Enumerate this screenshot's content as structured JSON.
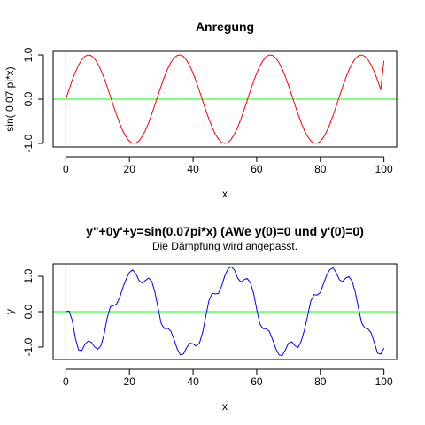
{
  "chart_data": [
    {
      "type": "line",
      "title": "Anregung",
      "subtitle": "",
      "xlabel": "x",
      "ylabel": "sin( 0.07 pi*x)",
      "xlim": [
        0,
        100
      ],
      "ylim": [
        -1,
        1
      ],
      "xticks": [
        0,
        20,
        40,
        60,
        80,
        100
      ],
      "xtick_labels": [
        "0",
        "20",
        "40",
        "60",
        "80",
        "100"
      ],
      "yticks": [
        -1,
        0,
        1
      ],
      "ytick_labels": [
        "-1.0",
        "0.0",
        "1.0"
      ],
      "grid": false,
      "reference_lines": {
        "h": 0,
        "v": 0,
        "color": "#00ff00"
      },
      "series": [
        {
          "color": "#ff0000",
          "x": [
            0,
            1,
            2,
            3,
            4,
            5,
            6,
            7,
            8,
            9,
            10,
            11,
            12,
            13,
            14,
            15,
            16,
            17,
            18,
            19,
            20,
            21,
            22,
            23,
            24,
            25,
            26,
            27,
            28,
            29,
            30,
            31,
            32,
            33,
            34,
            35,
            36,
            37,
            38,
            39,
            40,
            41,
            42,
            43,
            44,
            45,
            46,
            47,
            48,
            49,
            50,
            51,
            52,
            53,
            54,
            55,
            56,
            57,
            58,
            59,
            60,
            61,
            62,
            63,
            64,
            65,
            66,
            67,
            68,
            69,
            70,
            71,
            72,
            73,
            74,
            75,
            76,
            77,
            78,
            79,
            80,
            81,
            82,
            83,
            84,
            85,
            86,
            87,
            88,
            89,
            90,
            91,
            92,
            93,
            94,
            95,
            96,
            97,
            98,
            99,
            100
          ],
          "y": [
            0.0,
            0.218,
            0.426,
            0.613,
            0.771,
            0.891,
            0.969,
            0.999,
            0.982,
            0.918,
            0.809,
            0.661,
            0.482,
            0.279,
            0.063,
            -0.156,
            -0.368,
            -0.562,
            -0.729,
            -0.861,
            -0.951,
            -0.996,
            -0.993,
            -0.941,
            -0.844,
            -0.707,
            -0.536,
            -0.339,
            -0.125,
            0.094,
            0.309,
            0.509,
            0.685,
            0.827,
            0.93,
            0.988,
            0.999,
            0.963,
            0.876,
            0.75,
            0.588,
            0.397,
            0.187,
            -0.031,
            -0.249,
            -0.454,
            -0.637,
            -0.79,
            -0.904,
            -0.976,
            -1.0,
            -0.976,
            -0.904,
            -0.79,
            -0.637,
            -0.454,
            -0.249,
            -0.031,
            0.187,
            0.397,
            0.588,
            0.75,
            0.876,
            0.963,
            0.999,
            0.988,
            0.93,
            0.827,
            0.685,
            0.509,
            0.309,
            0.094,
            -0.125,
            -0.339,
            -0.536,
            -0.707,
            -0.844,
            -0.941,
            -0.993,
            -0.996,
            -0.951,
            -0.861,
            -0.729,
            -0.562,
            -0.368,
            -0.156,
            0.063,
            0.279,
            0.482,
            0.661,
            0.809,
            0.918,
            0.982,
            0.999,
            0.969,
            0.891,
            0.771,
            0.613,
            0.426,
            0.218,
            0.866
          ]
        }
      ]
    },
    {
      "type": "line",
      "title": "y\"+0y'+y=sin(0.07pi*x) (AWe y(0)=0 und y'(0)=0)",
      "subtitle": "Die Dämpfung wird angepasst.",
      "xlabel": "x",
      "ylabel": "y",
      "xlim": [
        0,
        100
      ],
      "ylim": [
        -1.25,
        1.25
      ],
      "xticks": [
        0,
        20,
        40,
        60,
        80,
        100
      ],
      "xtick_labels": [
        "0",
        "20",
        "40",
        "60",
        "80",
        "100"
      ],
      "yticks": [
        -1,
        0,
        1
      ],
      "ytick_labels": [
        "-1.0",
        "0.0",
        "1.0"
      ],
      "grid": false,
      "reference_lines": {
        "h": 0,
        "v": 0,
        "color": "#00ff00"
      },
      "series": [
        {
          "color": "#0000ff",
          "x": [
            0,
            1,
            2,
            3,
            4,
            5,
            6,
            7,
            8,
            9,
            10,
            11,
            12,
            13,
            14,
            15,
            16,
            17,
            18,
            19,
            20,
            21,
            22,
            23,
            24,
            25,
            26,
            27,
            28,
            29,
            30,
            31,
            32,
            33,
            34,
            35,
            36,
            37,
            38,
            39,
            40,
            41,
            42,
            43,
            44,
            45,
            46,
            47,
            48,
            49,
            50,
            51,
            52,
            53,
            54,
            55,
            56,
            57,
            58,
            59,
            60,
            61,
            62,
            63,
            64,
            65,
            66,
            67,
            68,
            69,
            70,
            71,
            72,
            73,
            74,
            75,
            76,
            77,
            78,
            79,
            80,
            81,
            82,
            83,
            84,
            85,
            86,
            87,
            88,
            89,
            90,
            91,
            92,
            93,
            94,
            95,
            96,
            97,
            98,
            99,
            100
          ],
          "y": [
            0.0,
            0.02,
            -0.24,
            -0.75,
            -1.08,
            -1.1,
            -0.92,
            -0.83,
            -0.86,
            -0.99,
            -1.06,
            -0.97,
            -0.65,
            -0.18,
            0.14,
            0.17,
            0.22,
            0.42,
            0.7,
            0.93,
            1.11,
            1.18,
            1.07,
            0.88,
            0.81,
            0.88,
            0.95,
            0.86,
            0.55,
            0.1,
            -0.34,
            -0.48,
            -0.47,
            -0.55,
            -0.78,
            -1.05,
            -1.22,
            -1.19,
            -1.01,
            -0.89,
            -0.91,
            -0.97,
            -0.89,
            -0.59,
            -0.13,
            0.32,
            0.52,
            0.5,
            0.52,
            0.73,
            1.02,
            1.21,
            1.27,
            1.18,
            0.95,
            0.84,
            0.9,
            0.94,
            0.82,
            0.53,
            0.07,
            -0.35,
            -0.48,
            -0.48,
            -0.56,
            -0.79,
            -1.04,
            -1.22,
            -1.24,
            -1.08,
            -0.89,
            -0.85,
            -0.96,
            -1.01,
            -0.83,
            -0.52,
            -0.12,
            0.3,
            0.48,
            0.47,
            0.54,
            0.79,
            1.03,
            1.19,
            1.24,
            1.1,
            0.9,
            0.85,
            0.95,
            0.99,
            0.86,
            0.55,
            0.1,
            -0.32,
            -0.46,
            -0.49,
            -0.6,
            -0.88,
            -1.17,
            -1.2,
            -1.03
          ]
        }
      ]
    }
  ]
}
